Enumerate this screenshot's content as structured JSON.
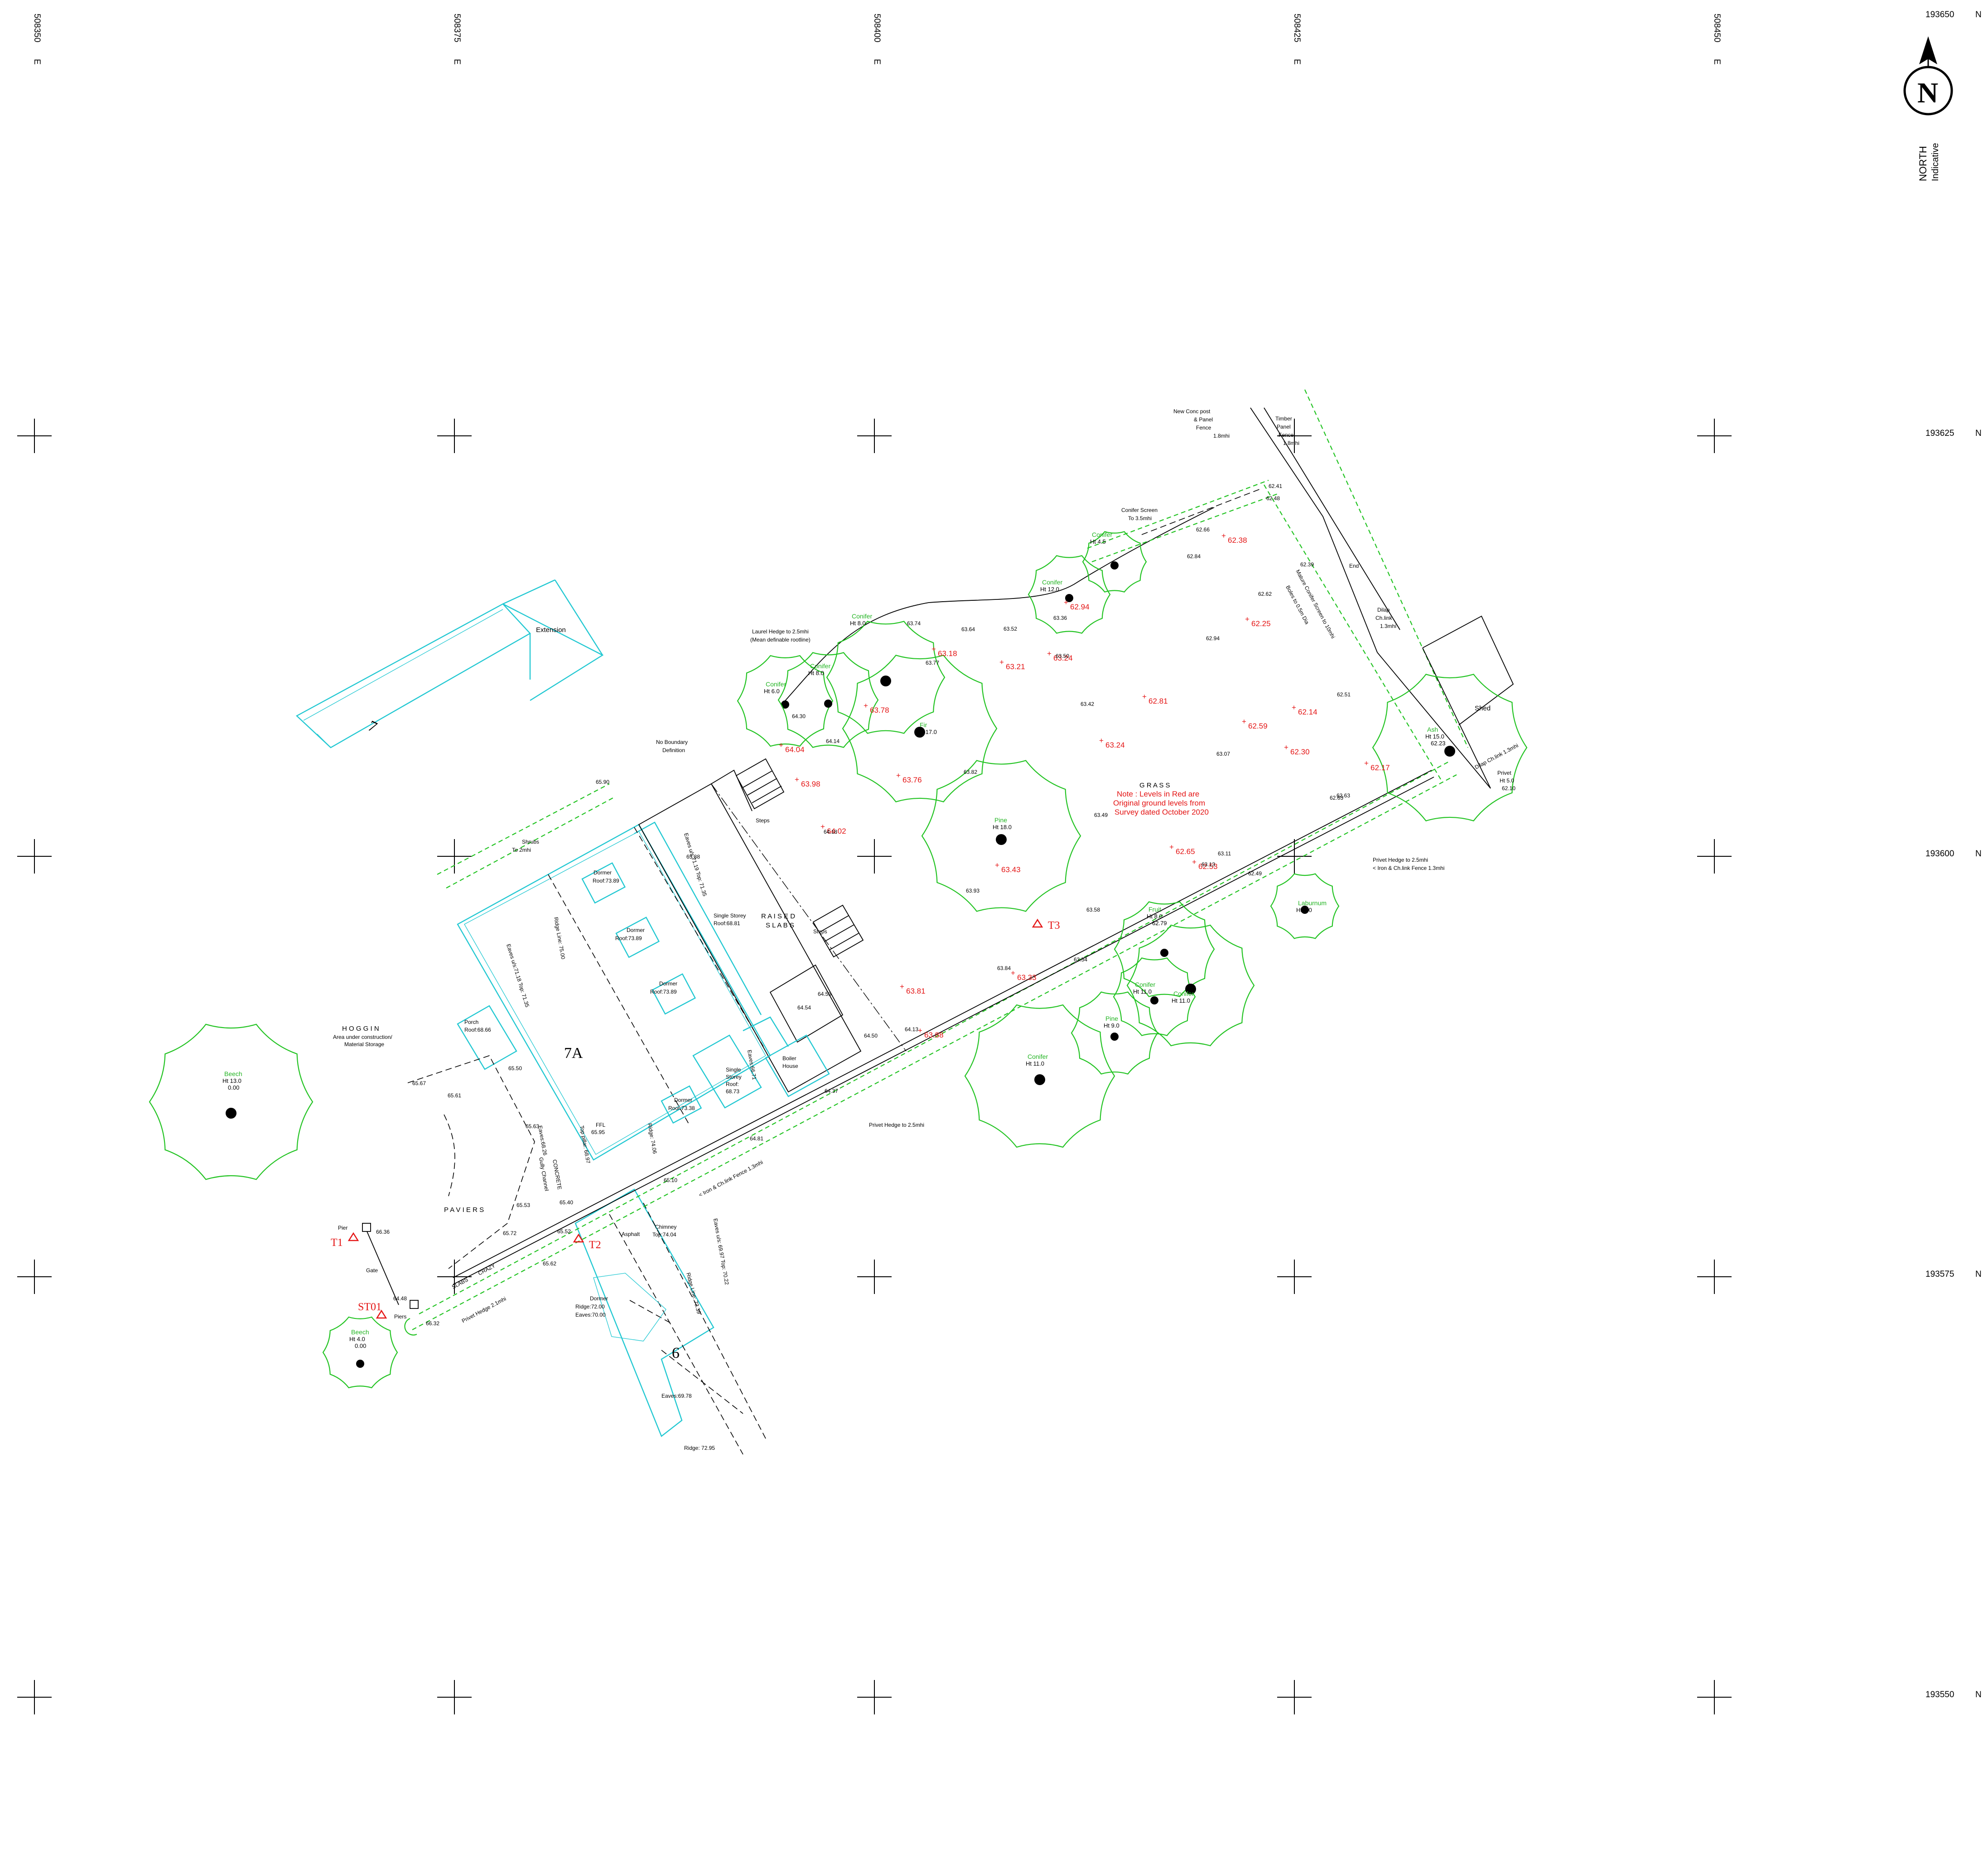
{
  "grid": {
    "eastings": [
      {
        "label": "508350",
        "unit": "E"
      },
      {
        "label": "508375",
        "unit": "E"
      },
      {
        "label": "508400",
        "unit": "E"
      },
      {
        "label": "508425",
        "unit": "E"
      },
      {
        "label": "508450",
        "unit": "E"
      }
    ],
    "northings": [
      {
        "label": "193650",
        "unit": "N"
      },
      {
        "label": "193625",
        "unit": "N"
      },
      {
        "label": "193600",
        "unit": "N"
      },
      {
        "label": "193575",
        "unit": "N"
      },
      {
        "label": "193550",
        "unit": "N"
      }
    ]
  },
  "north_arrow": {
    "letter": "N",
    "label": "NORTH",
    "sublabel": "Indicative"
  },
  "buildings": {
    "b7": {
      "number": "7",
      "extension": "Extension"
    },
    "b7a": {
      "number": "7A",
      "dormer1": [
        "Dormer",
        "Roof:73.89"
      ],
      "dormer2": [
        "Dormer",
        "Roof:73.89"
      ],
      "dormer3": [
        "Dormer",
        "Roof:73.89"
      ],
      "dormer4": [
        "Dormer",
        "Roof:73.38"
      ],
      "ridge_line": "Ridge Line: 75.00",
      "eaves_top_left": "Eaves u/s:71.18   Top: 71.35",
      "eaves_top_right": "Eaves u/s:71.19   Top: 71.35",
      "single_storey": [
        "Single Storey",
        "Roof:68.81"
      ],
      "single_storey_2": [
        "Single",
        "Storey",
        "Roof:",
        "68.73"
      ],
      "eaves_66": "Eaves:66.71",
      "porch": [
        "Porch",
        "Roof:68.66"
      ],
      "ffl": [
        "FFL",
        "65.95"
      ],
      "top_pillar": "Top pillar: 68.97",
      "eaves_68": "Eaves:68.26",
      "ridge_74": "Ridge: 74.06",
      "boiler_house": [
        "Boiler",
        "House"
      ]
    },
    "b9": {
      "number": "9",
      "dormer": [
        "Dormer",
        "Ridge:72.00",
        "Eaves:70.00"
      ],
      "chimney": [
        "Chimney",
        "Top:74.04"
      ],
      "eaves_70": "Eaves u/s: 69.97  Top: 70.22",
      "ridge_line": "Ridge Line: 73.39",
      "eaves_69": "Eaves:69.78",
      "ridge_72": "Ridge: 72.95"
    }
  },
  "labels": {
    "extension": "Extension",
    "hoggin": "H O G G I N",
    "hoggin_sub": [
      "Area under construction/",
      "Material Storage"
    ],
    "paviers": "P A V I E R S",
    "raised_slabs": [
      "R A I S E D",
      "S L A B S"
    ],
    "steps_1": "Steps",
    "steps_2": "Steps",
    "grass": "G R A S S",
    "no_boundary": [
      "No Boundary",
      "Definition"
    ],
    "shrubs": [
      "Shrubs",
      "To 2mhi"
    ],
    "laurel": [
      "Laurel Hedge to 2.5mhi",
      "(Mean definable rootline)"
    ],
    "conifer_screen": [
      "Conifer Screen",
      "To 3.5mhi"
    ],
    "new_conc": [
      "New Conc post",
      "& Panel",
      "Fence",
      "1.8mhi"
    ],
    "timber": [
      "Timber",
      "Panel",
      "Fence",
      "1.8mhi"
    ],
    "mature_conifer": "Mature Conifer Screen to 10mhi",
    "boles": "Boles to 0.5m Dia",
    "end": "End",
    "dilap_1": [
      "Dilap",
      "Ch.link",
      "1.3mhi"
    ],
    "dilap_2": "Dilap Ch.link 1.3mhi",
    "shed": "Shed",
    "privet_5": [
      "Privet",
      "Ht 5.0",
      "62.10"
    ],
    "privet_hedge_right": [
      "Privet Hedge to 2.5mhi",
      "< Iron & Ch.link Fence 1.3mhi"
    ],
    "privet_hedge_centre": "Privet Hedge to 2.5mhi",
    "iron_fence": "< Iron & Ch.link Fence 1.3mhi",
    "privet_hedge_left": "Privet Hedge 2.1mhi",
    "concrete": "CONCRETE",
    "gully": "Gully Channel",
    "asphalt": "Asphalt",
    "crazy": "CRAZY",
    "slabs": "SLABS",
    "pier": "Pier",
    "piers": "Piers",
    "gate": "Gate",
    "boiler_house": [
      "Boiler",
      "House"
    ]
  },
  "note": [
    "Note : Levels in Red are",
    "Original ground levels from",
    "Survey dated October 2020"
  ],
  "stations": [
    "T1",
    "T2",
    "T3",
    "ST01"
  ],
  "trees": [
    {
      "name": "Beech",
      "ht": "Ht 13.0",
      "sub": "0.00"
    },
    {
      "name": "Beech",
      "ht": "Ht 4.0",
      "sub": "0.00"
    },
    {
      "name": "Conifer",
      "ht": "Ht 6.0"
    },
    {
      "name": "Conifer",
      "ht": "Ht 8.0"
    },
    {
      "name": "Conifer",
      "ht": "Ht 8.0"
    },
    {
      "name": "Fir",
      "ht": "Ht 17.0"
    },
    {
      "name": "Pine",
      "ht": "Ht 18.0"
    },
    {
      "name": "Conifer",
      "ht": "Ht 12.0"
    },
    {
      "name": "Conifer",
      "ht": "Ht 4.5"
    },
    {
      "name": "Ash",
      "ht": "Ht 15.0",
      "sub": "62.23"
    },
    {
      "name": "Laburnum",
      "ht": "Ht 6.0"
    },
    {
      "name": "Fruit",
      "ht": "Ht 8.0",
      "sub": "62.79"
    },
    {
      "name": "Conifer",
      "ht": "Ht 11.0"
    },
    {
      "name": "Conifer",
      "ht": "Ht 11.0"
    },
    {
      "name": "Pine",
      "ht": "Ht 9.0"
    },
    {
      "name": "Conifer",
      "ht": "Ht 11.0"
    }
  ],
  "levels_red": [
    "62.38",
    "62.94",
    "63.18",
    "63.21",
    "63.24",
    "62.81",
    "62.25",
    "62.14",
    "62.59",
    "62.30",
    "62.17",
    "63.24",
    "63.78",
    "64.04",
    "63.98",
    "63.76",
    "64.02",
    "63.43",
    "62.65",
    "62.53",
    "63.33",
    "63.81",
    "63.88"
  ],
  "levels_black": [
    "62.41",
    "62.48",
    "62.66",
    "62.84",
    "62.62",
    "62.39",
    "62.94",
    "62.51",
    "63.64",
    "63.52",
    "63.74",
    "63.77",
    "63.50",
    "63.36",
    "63.42",
    "64.30",
    "64.14",
    "63.82",
    "63.07",
    "64.18",
    "63.49",
    "63.93",
    "62.63",
    "63.11",
    "63.13",
    "62.49",
    "63.58",
    "63.84",
    "63.54",
    "64.13",
    "64.50",
    "64.54",
    "64.53",
    "64.37",
    "65.90",
    "65.88",
    "65.50",
    "65.67",
    "65.61",
    "65.63",
    "65.53",
    "65.40",
    "65.72",
    "65.62",
    "65.52",
    "64.81",
    "65.10",
    "66.36",
    "64.48",
    "66.32",
    "62.63"
  ]
}
